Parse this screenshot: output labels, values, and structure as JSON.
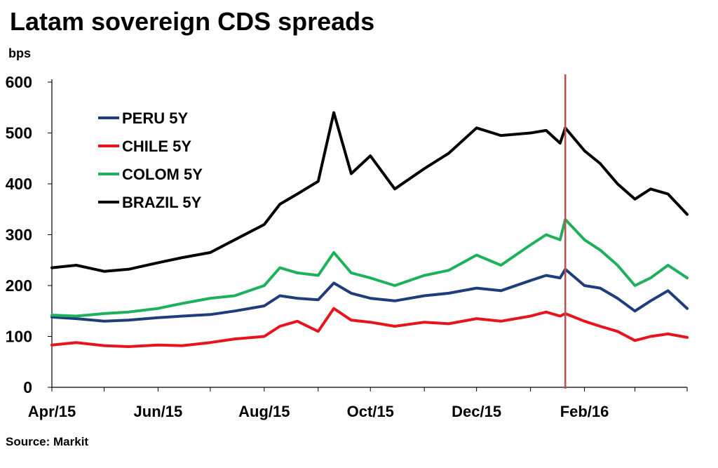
{
  "page": {
    "title": "Latam sovereign CDS spreads",
    "source": "Source: Markit"
  },
  "colors": {
    "PERU 5Y": "#1F3D7A",
    "CHILE 5Y": "#E8141B",
    "COLOM 5Y": "#1EB15A",
    "BRAZIL 5Y": "#000000",
    "marker": "#C0504D"
  },
  "chart_data": {
    "type": "line",
    "title": "Latam sovereign CDS spreads",
    "ylabel": "bps",
    "ylim": [
      0,
      600
    ],
    "yticks": [
      0,
      100,
      200,
      300,
      400,
      500,
      600
    ],
    "xlim": [
      "2015-04-01",
      "2016-03-31"
    ],
    "xticks": [
      "Apr/15",
      "Jun/15",
      "Aug/15",
      "Oct/15",
      "Dec/15",
      "Feb/16"
    ],
    "xtick_dates": [
      "2015-04-01",
      "2015-06-01",
      "2015-08-01",
      "2015-10-01",
      "2015-12-01",
      "2016-02-01"
    ],
    "vertical_marker": "2016-01-21",
    "legend_position": "upper-left",
    "grid": false,
    "series": [
      {
        "name": "PERU 5Y",
        "x": [
          "2015-04-01",
          "2015-04-15",
          "2015-05-01",
          "2015-05-15",
          "2015-06-01",
          "2015-06-15",
          "2015-07-01",
          "2015-07-15",
          "2015-08-01",
          "2015-08-10",
          "2015-08-20",
          "2015-09-01",
          "2015-09-10",
          "2015-09-20",
          "2015-10-01",
          "2015-10-15",
          "2015-11-01",
          "2015-11-15",
          "2015-12-01",
          "2015-12-15",
          "2016-01-01",
          "2016-01-10",
          "2016-01-18",
          "2016-01-21",
          "2016-02-01",
          "2016-02-10",
          "2016-02-20",
          "2016-03-01",
          "2016-03-10",
          "2016-03-20",
          "2016-03-31"
        ],
        "values": [
          138,
          135,
          130,
          132,
          137,
          140,
          143,
          150,
          160,
          180,
          175,
          172,
          205,
          185,
          175,
          170,
          180,
          185,
          195,
          190,
          210,
          220,
          215,
          232,
          200,
          195,
          175,
          150,
          170,
          190,
          155
        ]
      },
      {
        "name": "CHILE 5Y",
        "x": [
          "2015-04-01",
          "2015-04-15",
          "2015-05-01",
          "2015-05-15",
          "2015-06-01",
          "2015-06-15",
          "2015-07-01",
          "2015-07-15",
          "2015-08-01",
          "2015-08-10",
          "2015-08-20",
          "2015-09-01",
          "2015-09-10",
          "2015-09-20",
          "2015-10-01",
          "2015-10-15",
          "2015-11-01",
          "2015-11-15",
          "2015-12-01",
          "2015-12-15",
          "2016-01-01",
          "2016-01-10",
          "2016-01-18",
          "2016-01-21",
          "2016-02-01",
          "2016-02-10",
          "2016-02-20",
          "2016-03-01",
          "2016-03-10",
          "2016-03-20",
          "2016-03-31"
        ],
        "values": [
          83,
          88,
          82,
          80,
          83,
          82,
          88,
          95,
          100,
          120,
          130,
          110,
          155,
          132,
          128,
          120,
          128,
          125,
          135,
          130,
          140,
          148,
          140,
          145,
          130,
          120,
          110,
          92,
          100,
          105,
          98
        ]
      },
      {
        "name": "COLOM 5Y",
        "x": [
          "2015-04-01",
          "2015-04-15",
          "2015-05-01",
          "2015-05-15",
          "2015-06-01",
          "2015-06-15",
          "2015-07-01",
          "2015-07-15",
          "2015-08-01",
          "2015-08-10",
          "2015-08-20",
          "2015-09-01",
          "2015-09-10",
          "2015-09-20",
          "2015-10-01",
          "2015-10-15",
          "2015-11-01",
          "2015-11-15",
          "2015-12-01",
          "2015-12-15",
          "2016-01-01",
          "2016-01-10",
          "2016-01-18",
          "2016-01-21",
          "2016-02-01",
          "2016-02-10",
          "2016-02-20",
          "2016-03-01",
          "2016-03-10",
          "2016-03-20",
          "2016-03-31"
        ],
        "values": [
          142,
          140,
          145,
          148,
          155,
          165,
          175,
          180,
          200,
          235,
          225,
          220,
          265,
          225,
          215,
          200,
          220,
          230,
          260,
          240,
          280,
          300,
          290,
          330,
          290,
          270,
          240,
          200,
          215,
          240,
          215
        ]
      },
      {
        "name": "BRAZIL 5Y",
        "x": [
          "2015-04-01",
          "2015-04-15",
          "2015-05-01",
          "2015-05-15",
          "2015-06-01",
          "2015-06-15",
          "2015-07-01",
          "2015-07-15",
          "2015-08-01",
          "2015-08-10",
          "2015-08-20",
          "2015-09-01",
          "2015-09-10",
          "2015-09-20",
          "2015-10-01",
          "2015-10-15",
          "2015-11-01",
          "2015-11-15",
          "2015-12-01",
          "2015-12-15",
          "2016-01-01",
          "2016-01-10",
          "2016-01-18",
          "2016-01-21",
          "2016-02-01",
          "2016-02-10",
          "2016-02-20",
          "2016-03-01",
          "2016-03-10",
          "2016-03-20",
          "2016-03-31"
        ],
        "values": [
          235,
          240,
          228,
          232,
          245,
          255,
          265,
          290,
          320,
          360,
          380,
          405,
          540,
          420,
          455,
          390,
          430,
          460,
          510,
          495,
          500,
          505,
          480,
          510,
          465,
          440,
          400,
          370,
          390,
          380,
          340
        ]
      }
    ]
  }
}
